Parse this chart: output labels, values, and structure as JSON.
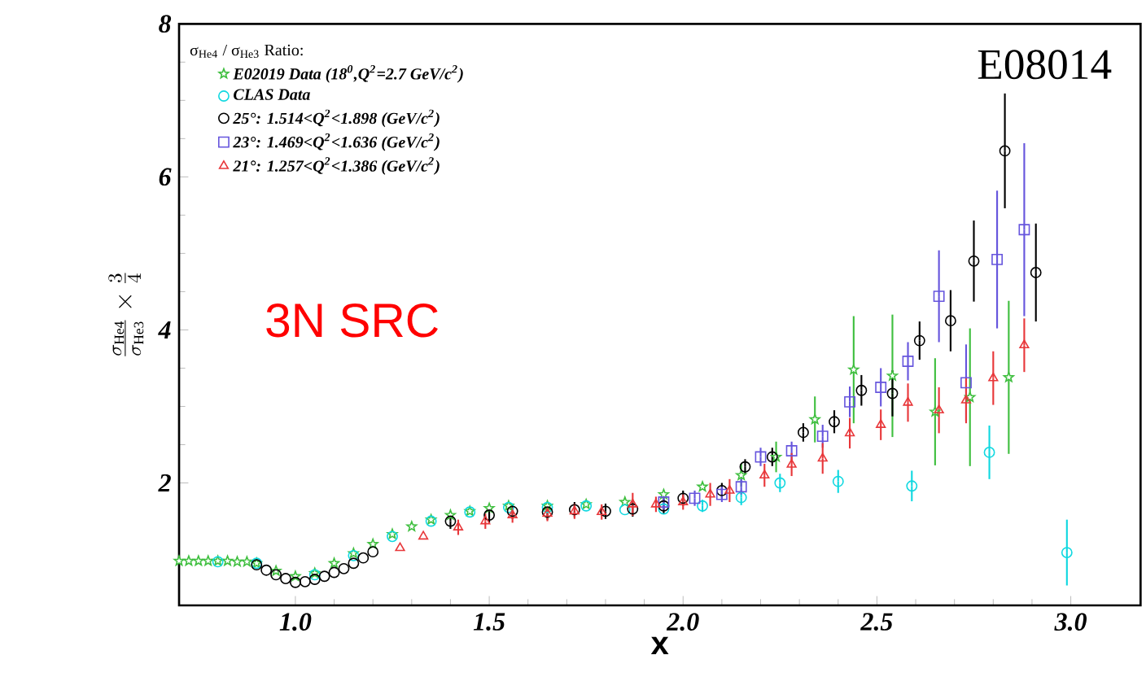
{
  "chart_data": {
    "type": "scatter",
    "ylabel": "\\frac{\\sigma_{\\mathrm{He4}}}{\\sigma_{\\mathrm{He3}}}\\times\\frac{3}{4}",
    "xlabel": "x",
    "legend_title": "σ$_{He4}$ / σ$_{He3}$ Ratio:",
    "legend": "top left",
    "xlim": [
      0.7,
      3.18
    ],
    "ylim": [
      0.4,
      8
    ],
    "xticks": [
      {
        "value": 1.0,
        "label": "1.0"
      },
      {
        "value": 1.5,
        "label": "1.5"
      },
      {
        "value": 2.0,
        "label": "2.0"
      },
      {
        "value": 2.5,
        "label": "2.5"
      },
      {
        "value": 3.0,
        "label": "3.0"
      }
    ],
    "yticks": [
      2,
      4,
      6,
      8
    ],
    "annotations": [
      "E08014",
      "3N SRC"
    ],
    "series": [
      {
        "name": "E02019 Data (18$^{0}$,Q$^{2}$=2.7 GeV/c$^{2}$)",
        "color": "#3fbf3f",
        "marker": "star",
        "x": [
          0.7,
          0.725,
          0.75,
          0.775,
          0.8,
          0.825,
          0.85,
          0.875,
          0.9,
          0.95,
          1.0,
          1.05,
          1.1,
          1.15,
          1.2,
          1.25,
          1.3,
          1.35,
          1.4,
          1.45,
          1.5,
          1.55,
          1.65,
          1.75,
          1.85,
          1.95,
          2.05,
          2.15,
          2.24,
          2.34,
          2.44,
          2.54,
          2.65,
          2.74,
          2.84
        ],
        "values": [
          0.98,
          0.98,
          0.98,
          0.98,
          0.98,
          0.98,
          0.97,
          0.97,
          0.95,
          0.85,
          0.78,
          0.82,
          0.95,
          1.08,
          1.2,
          1.33,
          1.43,
          1.52,
          1.58,
          1.63,
          1.67,
          1.7,
          1.7,
          1.72,
          1.75,
          1.85,
          1.95,
          2.1,
          2.34,
          2.83,
          3.48,
          3.4,
          2.93,
          3.12,
          3.38
        ],
        "errors": [
          null,
          null,
          null,
          null,
          null,
          null,
          null,
          null,
          null,
          null,
          null,
          null,
          null,
          null,
          null,
          null,
          null,
          null,
          null,
          null,
          null,
          null,
          null,
          null,
          null,
          null,
          null,
          0.15,
          0.2,
          0.3,
          0.7,
          0.8,
          0.7,
          0.9,
          1.0
        ]
      },
      {
        "name": "CLAS Data",
        "color": "#10d8e0",
        "marker": "circle",
        "x": [
          0.8,
          0.9,
          1.05,
          1.15,
          1.25,
          1.35,
          1.45,
          1.55,
          1.65,
          1.75,
          1.85,
          1.95,
          2.05,
          2.15,
          2.25,
          2.4,
          2.59,
          2.79,
          2.99
        ],
        "values": [
          0.97,
          0.95,
          0.8,
          1.05,
          1.3,
          1.5,
          1.62,
          1.68,
          1.68,
          1.7,
          1.65,
          1.66,
          1.7,
          1.81,
          2.0,
          2.02,
          1.96,
          2.4,
          1.09
        ],
        "errors": [
          null,
          null,
          null,
          null,
          null,
          null,
          null,
          null,
          null,
          null,
          null,
          null,
          0.08,
          0.1,
          0.12,
          0.15,
          0.2,
          0.35,
          0.43
        ]
      },
      {
        "name": "25°: 1.514<Q$^{2}$<1.898 (GeV/c$^{2}$)",
        "color": "#000000",
        "marker": "circle",
        "x": [
          0.9,
          0.925,
          0.95,
          0.975,
          1.0,
          1.025,
          1.05,
          1.075,
          1.1,
          1.125,
          1.15,
          1.175,
          1.2,
          1.4,
          1.5,
          1.56,
          1.65,
          1.72,
          1.8,
          1.87,
          1.95,
          2.0,
          2.1,
          2.16,
          2.23,
          2.31,
          2.39,
          2.46,
          2.54,
          2.61,
          2.69,
          2.75,
          2.83,
          2.91
        ],
        "values": [
          0.93,
          0.86,
          0.8,
          0.75,
          0.7,
          0.71,
          0.74,
          0.78,
          0.83,
          0.88,
          0.95,
          1.02,
          1.1,
          1.5,
          1.58,
          1.63,
          1.62,
          1.65,
          1.63,
          1.66,
          1.7,
          1.8,
          1.9,
          2.21,
          2.34,
          2.66,
          2.8,
          3.21,
          3.17,
          3.86,
          4.12,
          4.9,
          6.34,
          4.75
        ],
        "errors": [
          null,
          null,
          null,
          null,
          null,
          null,
          null,
          null,
          null,
          null,
          null,
          null,
          null,
          0.1,
          0.1,
          0.1,
          0.1,
          0.1,
          0.1,
          0.1,
          0.1,
          0.1,
          0.1,
          0.1,
          0.12,
          0.12,
          0.15,
          0.2,
          0.3,
          0.25,
          0.4,
          0.53,
          0.75,
          0.64
        ]
      },
      {
        "name": "23°: 1.469<Q$^{2}$<1.636 (GeV/c$^{2}$)",
        "color": "#6655dd",
        "marker": "square",
        "x": [
          1.95,
          2.03,
          2.1,
          2.15,
          2.2,
          2.28,
          2.36,
          2.43,
          2.51,
          2.58,
          2.66,
          2.73,
          2.81,
          2.88
        ],
        "values": [
          1.75,
          1.8,
          1.85,
          1.95,
          2.34,
          2.42,
          2.61,
          3.06,
          3.25,
          3.59,
          4.44,
          3.31,
          4.92,
          5.31
        ],
        "errors": [
          0.1,
          0.1,
          0.1,
          0.1,
          0.12,
          0.12,
          0.15,
          0.2,
          0.25,
          0.25,
          0.6,
          0.5,
          0.9,
          1.13
        ]
      },
      {
        "name": "21°: 1.257<Q$^{2}$<1.386 (GeV/c$^{2}$)",
        "color": "#e8373a",
        "marker": "triangle",
        "x": [
          1.27,
          1.33,
          1.42,
          1.49,
          1.56,
          1.65,
          1.72,
          1.79,
          1.87,
          1.93,
          2.0,
          2.07,
          2.12,
          2.21,
          2.28,
          2.36,
          2.43,
          2.51,
          2.58,
          2.66,
          2.73,
          2.8,
          2.88
        ],
        "values": [
          1.15,
          1.3,
          1.42,
          1.5,
          1.58,
          1.6,
          1.63,
          1.62,
          1.72,
          1.72,
          1.75,
          1.85,
          1.9,
          2.1,
          2.24,
          2.32,
          2.65,
          2.76,
          3.05,
          2.95,
          3.08,
          3.37,
          3.8
        ],
        "errors": [
          null,
          null,
          0.1,
          0.1,
          0.1,
          0.1,
          0.1,
          0.1,
          0.15,
          0.1,
          0.1,
          0.15,
          0.15,
          0.15,
          0.15,
          0.2,
          0.2,
          0.2,
          0.25,
          0.3,
          0.3,
          0.35,
          0.35
        ]
      }
    ]
  }
}
